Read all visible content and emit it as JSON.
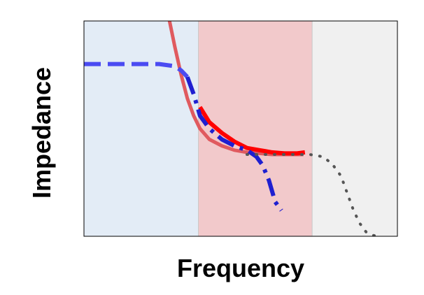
{
  "chart_data": {
    "type": "line",
    "title": "",
    "xlabel": "Frequency",
    "ylabel": "Impedance",
    "xlim": [
      0,
      1
    ],
    "ylim": [
      0,
      1
    ],
    "x_ticks_shown": false,
    "y_ticks_shown": false,
    "grid": false,
    "legend": "none",
    "regions": [
      {
        "x0": 0.0,
        "x1": 0.365,
        "color": "#e3ecf6"
      },
      {
        "x0": 0.365,
        "x1": 0.728,
        "color": "#f2c9cb"
      },
      {
        "x0": 0.728,
        "x1": 1.0,
        "color": "#f0f0f0"
      }
    ],
    "series": [
      {
        "style": "solid",
        "color": "#e05a5f",
        "width": 5,
        "x": [
          0.27,
          0.29,
          0.31,
          0.33,
          0.35,
          0.37,
          0.4,
          0.44,
          0.48,
          0.52,
          0.56,
          0.6,
          0.64,
          0.68,
          0.7
        ],
        "y": [
          1.02,
          0.88,
          0.75,
          0.64,
          0.56,
          0.5,
          0.45,
          0.42,
          0.4,
          0.39,
          0.385,
          0.38,
          0.38,
          0.38,
          0.38
        ]
      },
      {
        "style": "solid",
        "color": "#ff0000",
        "width": 6,
        "x": [
          0.37,
          0.4,
          0.44,
          0.48,
          0.52,
          0.56,
          0.6,
          0.64,
          0.68,
          0.705
        ],
        "y": [
          0.6,
          0.53,
          0.48,
          0.44,
          0.41,
          0.4,
          0.39,
          0.385,
          0.385,
          0.39
        ]
      },
      {
        "style": "dashed",
        "color": "#4b4bf2",
        "width": 6,
        "x": [
          0.0,
          0.06,
          0.12,
          0.18,
          0.24,
          0.29,
          0.31,
          0.33
        ],
        "y": [
          0.8,
          0.8,
          0.8,
          0.8,
          0.8,
          0.79,
          0.77,
          0.74
        ]
      },
      {
        "style": "dashdot",
        "color": "#1f1fd0",
        "width": 6,
        "x": [
          0.33,
          0.35,
          0.37,
          0.4,
          0.44,
          0.48,
          0.52,
          0.55,
          0.57,
          0.59,
          0.61,
          0.63
        ],
        "y": [
          0.74,
          0.66,
          0.56,
          0.5,
          0.45,
          0.42,
          0.4,
          0.37,
          0.33,
          0.26,
          0.16,
          0.12
        ]
      },
      {
        "style": "dotted",
        "color": "#555555",
        "width": 4,
        "x": [
          0.52,
          0.56,
          0.6,
          0.64,
          0.68,
          0.72,
          0.76,
          0.79,
          0.82,
          0.84,
          0.86,
          0.88,
          0.9,
          0.92,
          0.94
        ],
        "y": [
          0.38,
          0.38,
          0.38,
          0.38,
          0.38,
          0.38,
          0.37,
          0.34,
          0.28,
          0.2,
          0.12,
          0.06,
          0.02,
          0.005,
          0.0
        ]
      }
    ]
  }
}
